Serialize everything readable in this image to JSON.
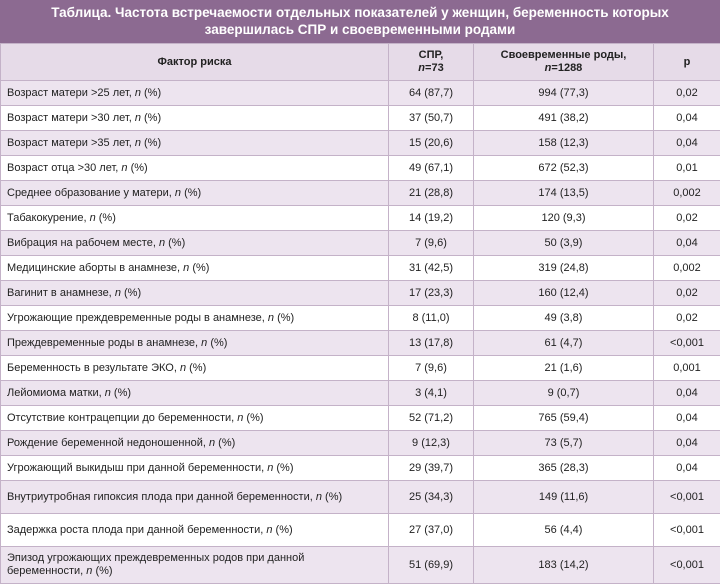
{
  "title": "Таблица. Частота встречаемости отдельных показателей у женщин, беременность которых завершилась СПР и своевременными родами",
  "table": {
    "header": [
      "Фактор риска",
      "СПР,\nn=73",
      "Своевременные роды,\nn=1288",
      "p"
    ],
    "rows": [
      [
        "Возраст матери >25 лет, n (%)",
        "64 (87,7)",
        "994 (77,3)",
        "0,02"
      ],
      [
        "Возраст матери >30 лет, n (%)",
        "37 (50,7)",
        "491 (38,2)",
        "0,04"
      ],
      [
        "Возраст матери >35 лет, n (%)",
        "15 (20,6)",
        "158 (12,3)",
        "0,04"
      ],
      [
        "Возраст отца >30 лет, n (%)",
        "49 (67,1)",
        "672 (52,3)",
        "0,01"
      ],
      [
        "Среднее образование у матери, n (%)",
        "21 (28,8)",
        "174 (13,5)",
        "0,002"
      ],
      [
        "Табакокурение, n (%)",
        "14 (19,2)",
        "120 (9,3)",
        "0,02"
      ],
      [
        "Вибрация на рабочем месте, n (%)",
        "7 (9,6)",
        "50 (3,9)",
        "0,04"
      ],
      [
        "Медицинские аборты в анамнезе, n (%)",
        "31 (42,5)",
        "319 (24,8)",
        "0,002"
      ],
      [
        "Вагинит в анамнезе, n (%)",
        "17 (23,3)",
        "160 (12,4)",
        "0,02"
      ],
      [
        "Угрожающие преждевременные роды в анамнезе, n (%)",
        "8 (11,0)",
        "49 (3,8)",
        "0,02"
      ],
      [
        "Преждевременные роды в анамнезе, n (%)",
        "13 (17,8)",
        "61 (4,7)",
        "<0,001"
      ],
      [
        "Беременность в результате ЭКО, n (%)",
        "7 (9,6)",
        "21 (1,6)",
        "0,001"
      ],
      [
        "Лейомиома матки, n (%)",
        "3 (4,1)",
        "9 (0,7)",
        "0,04"
      ],
      [
        "Отсутствие контрацепции до беременности, n (%)",
        "52 (71,2)",
        "765 (59,4)",
        "0,04"
      ],
      [
        "Рождение беременной недоношенной, n (%)",
        "9 (12,3)",
        "73 (5,7)",
        "0,04"
      ],
      [
        "Угрожающий выкидыш при данной беременности, n (%)",
        "29 (39,7)",
        "365 (28,3)",
        "0,04"
      ],
      [
        "Внутриутробная гипоксия плода при данной беременности, n (%)",
        "25 (34,3)",
        "149 (11,6)",
        "<0,001"
      ],
      [
        "Задержка роста плода при данной беременности, n (%)",
        "27 (37,0)",
        "56 (4,4)",
        "<0,001"
      ],
      [
        "Эпизод угрожающих преждевременных родов при данной беременности, n (%)",
        "51 (69,9)",
        "183 (14,2)",
        "<0,001"
      ]
    ]
  }
}
